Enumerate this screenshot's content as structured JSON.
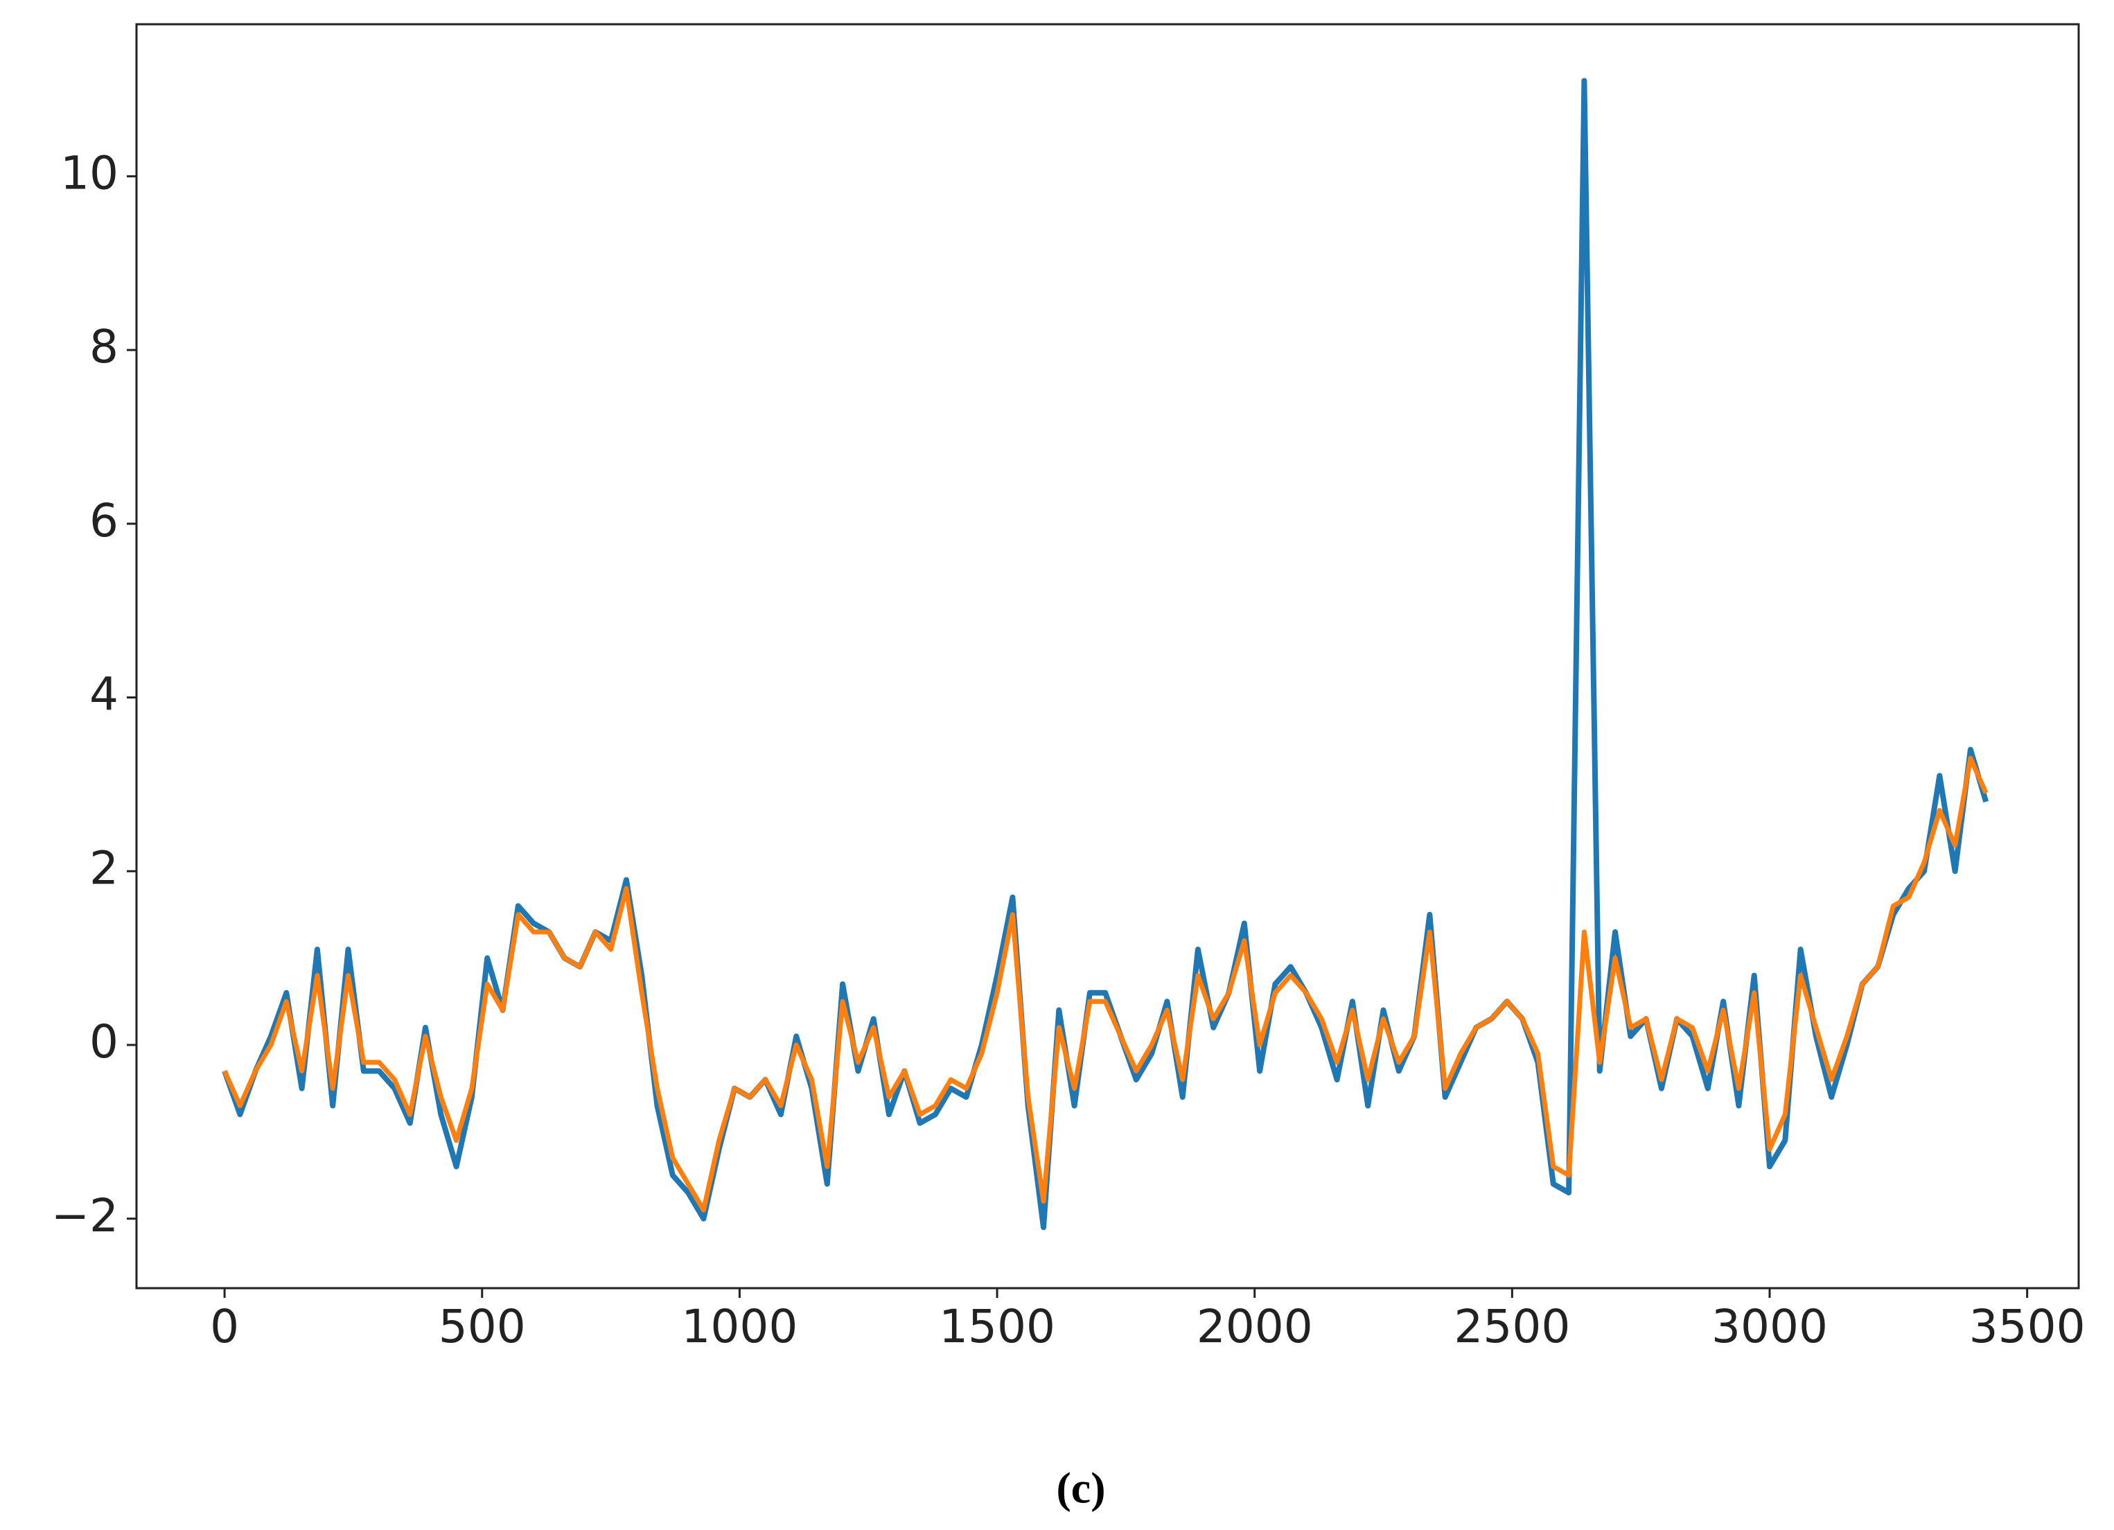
{
  "chart_data": {
    "type": "line",
    "caption": "(c)",
    "x": [
      0,
      30,
      60,
      90,
      120,
      150,
      180,
      210,
      240,
      270,
      300,
      330,
      360,
      390,
      420,
      450,
      480,
      510,
      540,
      570,
      600,
      630,
      660,
      690,
      720,
      750,
      780,
      810,
      840,
      870,
      900,
      930,
      960,
      990,
      1020,
      1050,
      1080,
      1110,
      1140,
      1170,
      1200,
      1230,
      1260,
      1290,
      1320,
      1350,
      1380,
      1410,
      1440,
      1470,
      1500,
      1530,
      1560,
      1590,
      1620,
      1650,
      1680,
      1710,
      1740,
      1770,
      1800,
      1830,
      1860,
      1890,
      1920,
      1950,
      1980,
      2010,
      2040,
      2070,
      2100,
      2130,
      2160,
      2190,
      2220,
      2250,
      2280,
      2310,
      2340,
      2370,
      2400,
      2430,
      2460,
      2490,
      2520,
      2550,
      2580,
      2610,
      2640,
      2670,
      2700,
      2730,
      2760,
      2790,
      2820,
      2850,
      2880,
      2910,
      2940,
      2970,
      3000,
      3030,
      3060,
      3090,
      3120,
      3150,
      3180,
      3210,
      3240,
      3270,
      3300,
      3330,
      3360,
      3390,
      3420
    ],
    "series": [
      {
        "color": "#1f77b4",
        "values": [
          -0.3,
          -0.8,
          -0.3,
          0.1,
          0.6,
          -0.5,
          1.1,
          -0.7,
          1.1,
          -0.3,
          -0.3,
          -0.5,
          -0.9,
          0.2,
          -0.8,
          -1.4,
          -0.6,
          1.0,
          0.4,
          1.6,
          1.4,
          1.3,
          1.0,
          0.9,
          1.3,
          1.2,
          1.9,
          0.8,
          -0.7,
          -1.5,
          -1.7,
          -2.0,
          -1.2,
          -0.5,
          -0.6,
          -0.4,
          -0.8,
          0.1,
          -0.5,
          -1.6,
          0.7,
          -0.3,
          0.3,
          -0.8,
          -0.3,
          -0.9,
          -0.8,
          -0.5,
          -0.6,
          0.0,
          0.8,
          1.7,
          -0.7,
          -2.1,
          0.4,
          -0.7,
          0.6,
          0.6,
          0.1,
          -0.4,
          -0.1,
          0.5,
          -0.6,
          1.1,
          0.2,
          0.6,
          1.4,
          -0.3,
          0.7,
          0.9,
          0.6,
          0.2,
          -0.4,
          0.5,
          -0.7,
          0.4,
          -0.3,
          0.1,
          1.5,
          -0.6,
          -0.2,
          0.2,
          0.3,
          0.5,
          0.3,
          -0.2,
          -1.6,
          -1.7,
          11.1,
          -0.3,
          1.3,
          0.1,
          0.3,
          -0.5,
          0.3,
          0.1,
          -0.5,
          0.5,
          -0.7,
          0.8,
          -1.4,
          -1.1,
          1.1,
          0.1,
          -0.6,
          0.0,
          0.7,
          0.9,
          1.5,
          1.8,
          2.0,
          3.1,
          2.0,
          3.4,
          2.8
        ]
      },
      {
        "color": "#ff7f0e",
        "values": [
          -0.3,
          -0.7,
          -0.3,
          0.0,
          0.5,
          -0.3,
          0.8,
          -0.5,
          0.8,
          -0.2,
          -0.2,
          -0.4,
          -0.8,
          0.1,
          -0.6,
          -1.1,
          -0.5,
          0.7,
          0.4,
          1.5,
          1.3,
          1.3,
          1.0,
          0.9,
          1.3,
          1.1,
          1.8,
          0.6,
          -0.5,
          -1.3,
          -1.6,
          -1.9,
          -1.1,
          -0.5,
          -0.6,
          -0.4,
          -0.7,
          0.0,
          -0.4,
          -1.4,
          0.5,
          -0.2,
          0.2,
          -0.6,
          -0.3,
          -0.8,
          -0.7,
          -0.4,
          -0.5,
          -0.1,
          0.6,
          1.5,
          -0.6,
          -1.8,
          0.2,
          -0.5,
          0.5,
          0.5,
          0.1,
          -0.3,
          0.0,
          0.4,
          -0.4,
          0.8,
          0.3,
          0.6,
          1.2,
          0.0,
          0.6,
          0.8,
          0.6,
          0.3,
          -0.2,
          0.4,
          -0.4,
          0.3,
          -0.2,
          0.1,
          1.3,
          -0.5,
          -0.1,
          0.2,
          0.3,
          0.5,
          0.3,
          -0.1,
          -1.4,
          -1.5,
          1.3,
          -0.2,
          1.0,
          0.2,
          0.3,
          -0.4,
          0.3,
          0.2,
          -0.3,
          0.4,
          -0.5,
          0.6,
          -1.2,
          -0.8,
          0.8,
          0.2,
          -0.4,
          0.1,
          0.7,
          0.9,
          1.6,
          1.7,
          2.1,
          2.7,
          2.3,
          3.3,
          2.9
        ]
      }
    ],
    "xlim": [
      -171,
      3600
    ],
    "ylim": [
      -2.8,
      11.75
    ],
    "xticks": [
      0,
      500,
      1000,
      1500,
      2000,
      2500,
      3000,
      3500
    ],
    "yticks": [
      {
        "value": -2,
        "label": "−2"
      },
      0,
      2,
      4,
      6,
      8,
      10
    ],
    "grid": false
  }
}
